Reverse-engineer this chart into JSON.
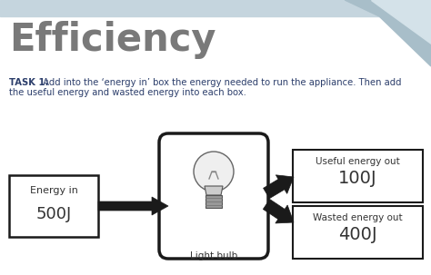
{
  "title": "Efficiency",
  "title_color": "#797979",
  "background_color": "#ffffff",
  "header_band_color": "#c5d5de",
  "corner_color_dark": "#a8bec9",
  "corner_color_light": "#d4e2e9",
  "task_bold": "TASK 1:",
  "task_rest": " Add into the ‘energy in’ box the energy needed to run the appliance. Then add",
  "task_line2": "the useful energy and wasted energy into each box.",
  "energy_in_label": "Energy in",
  "energy_in_value": "500J",
  "useful_label": "Useful energy out",
  "useful_value": "100J",
  "wasted_label": "Wasted energy out",
  "wasted_value": "400J",
  "bulb_label": "Light bulb",
  "box_edge_color": "#1a1a1a",
  "arrow_color": "#1a1a1a",
  "text_color": "#333333",
  "task_color": "#2c3e6b"
}
